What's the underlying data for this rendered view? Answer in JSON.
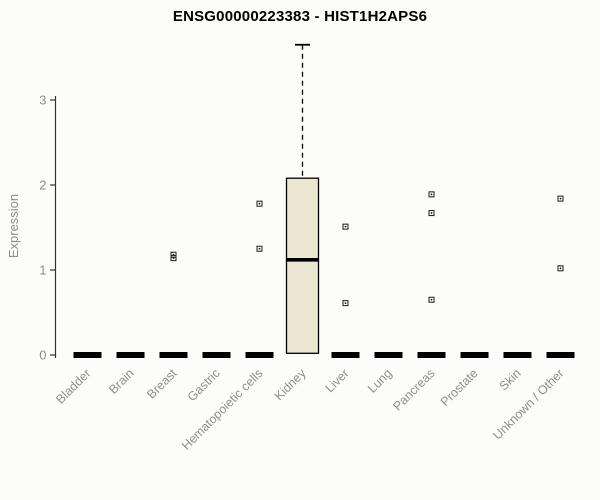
{
  "chart_data": {
    "type": "boxplot",
    "title": "ENSG00000223383 - HIST1H2APS6",
    "ylabel": "Expression",
    "xlabel": "",
    "yticks": [
      0,
      1,
      2,
      3
    ],
    "ylim": [
      -0.05,
      3.8
    ],
    "grid": false,
    "legend": "none",
    "categories": [
      "Bladder",
      "Brain",
      "Breast",
      "Gastric",
      "Hematopoietic cells",
      "Kidney",
      "Liver",
      "Lung",
      "Pancreas",
      "Prostate",
      "Skin",
      "Unknown / Other"
    ],
    "boxes": [
      {
        "category": "Bladder",
        "min": 0,
        "q1": 0,
        "median": 0,
        "q3": 0,
        "max": 0,
        "outliers": []
      },
      {
        "category": "Brain",
        "min": 0,
        "q1": 0,
        "median": 0,
        "q3": 0,
        "max": 0,
        "outliers": []
      },
      {
        "category": "Breast",
        "min": 0,
        "q1": 0,
        "median": 0,
        "q3": 0,
        "max": 0,
        "outliers": [
          1.14,
          1.18
        ]
      },
      {
        "category": "Gastric",
        "min": 0,
        "q1": 0,
        "median": 0,
        "q3": 0,
        "max": 0,
        "outliers": []
      },
      {
        "category": "Hematopoietic cells",
        "min": 0,
        "q1": 0,
        "median": 0,
        "q3": 0,
        "max": 0,
        "outliers": [
          1.78,
          1.25
        ]
      },
      {
        "category": "Kidney",
        "min": 0.02,
        "q1": 0.02,
        "median": 1.12,
        "q3": 2.08,
        "max": 3.65,
        "outliers": []
      },
      {
        "category": "Liver",
        "min": 0,
        "q1": 0,
        "median": 0,
        "q3": 0,
        "max": 0,
        "outliers": [
          1.51,
          0.61
        ]
      },
      {
        "category": "Lung",
        "min": 0,
        "q1": 0,
        "median": 0,
        "q3": 0,
        "max": 0,
        "outliers": []
      },
      {
        "category": "Pancreas",
        "min": 0,
        "q1": 0,
        "median": 0,
        "q3": 0,
        "max": 0,
        "outliers": [
          1.89,
          1.67,
          0.65
        ]
      },
      {
        "category": "Prostate",
        "min": 0,
        "q1": 0,
        "median": 0,
        "q3": 0,
        "max": 0,
        "outliers": []
      },
      {
        "category": "Skin",
        "min": 0,
        "q1": 0,
        "median": 0,
        "q3": 0,
        "max": 0,
        "outliers": []
      },
      {
        "category": "Unknown / Other",
        "min": 0,
        "q1": 0,
        "median": 0,
        "q3": 0,
        "max": 0,
        "outliers": [
          1.84,
          1.02
        ]
      }
    ],
    "colors": {
      "background": "#fcfcfa",
      "box_fill": "#ece7d2",
      "box_border": "#000000",
      "median": "#000000",
      "whisker": "#000000",
      "outlier": "#1a1a1a",
      "axis": "#333333",
      "tick_label": "#8e8e8e",
      "category_label": "#8e8e8e",
      "title": "#000000"
    }
  }
}
